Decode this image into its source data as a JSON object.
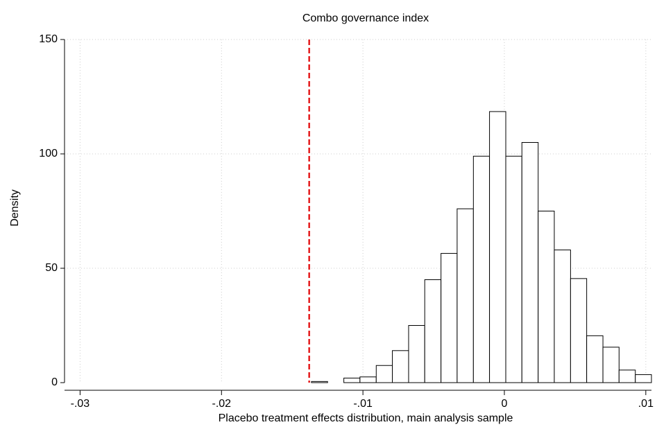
{
  "chart_data": {
    "type": "histogram",
    "title": "Combo governance index",
    "x_label": "Placebo treatment effects distribution, main analysis sample",
    "y_label": "Density",
    "bins": [
      -0.01364,
      -0.0125,
      -0.01135,
      -0.01021,
      -0.00906,
      -0.00792,
      -0.00677,
      -0.00563,
      -0.00448,
      -0.00334,
      -0.00219,
      -0.00105,
      0.0001,
      0.00124,
      0.00239,
      0.00353,
      0.00468,
      0.00582,
      0.00697,
      0.00811,
      0.00926,
      0.0104
    ],
    "values": [
      0.5,
      0,
      2,
      2.5,
      7.5,
      14,
      25,
      45,
      56.5,
      76,
      99,
      118.5,
      99,
      105,
      75,
      58,
      45.5,
      20.5,
      15.5,
      5.5,
      3.5
    ],
    "color": "#ffffff",
    "edge_color": "#000000",
    "reference_line": {
      "x": -0.0138,
      "color": "#e41a1c"
    },
    "xlim": [
      -0.0311,
      0.0104
    ],
    "ylim": [
      0,
      150
    ],
    "xticks": [
      {
        "value": -0.03,
        "label": "-.03"
      },
      {
        "value": -0.02,
        "label": "-.02"
      },
      {
        "value": -0.01,
        "label": "-.01"
      },
      0,
      {
        "value": 0.01,
        "label": ".01"
      }
    ],
    "yticks": [
      0,
      50,
      100,
      150
    ],
    "grid": true
  }
}
